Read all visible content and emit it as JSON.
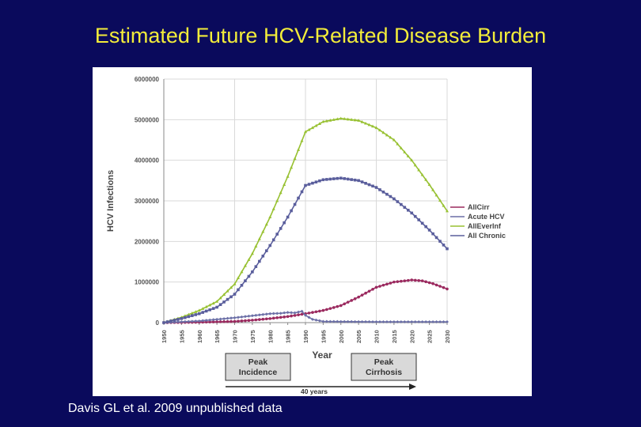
{
  "slide": {
    "title": "Estimated Future HCV-Related Disease Burden",
    "citation": "Davis GL et al. 2009 unpublished data"
  },
  "colors": {
    "background": "#0a0a5c",
    "title": "#f2ec3a",
    "AllCirr": "#9b2a5f",
    "Acute HCV": "#6b6fa6",
    "AllEverInf": "#98c132",
    "All Chronic": "#5a5e9c"
  },
  "chart_data": {
    "type": "line",
    "xlabel": "Year",
    "ylabel": "HCV Infections",
    "xlim": [
      1950,
      2030
    ],
    "ylim": [
      0,
      6000000
    ],
    "y_ticks": [
      "0",
      "1000000",
      "2000000",
      "3000000",
      "4000000",
      "5000000",
      "6000000"
    ],
    "x_ticks": [
      "1950",
      "1955",
      "1960",
      "1965",
      "1970",
      "1975",
      "1980",
      "1985",
      "1990",
      "1995",
      "2000",
      "2005",
      "2010",
      "2015",
      "2020",
      "2025",
      "2030"
    ],
    "grid": true,
    "legend_position": "right",
    "series": [
      {
        "name": "AllCirr",
        "x": [
          1950,
          1960,
          1970,
          1975,
          1980,
          1985,
          1990,
          1995,
          2000,
          2005,
          2010,
          2015,
          2020,
          2023,
          2026,
          2030
        ],
        "values": [
          0,
          10000,
          30000,
          60000,
          100000,
          150000,
          220000,
          300000,
          420000,
          630000,
          870000,
          1000000,
          1050000,
          1030000,
          960000,
          830000
        ]
      },
      {
        "name": "Acute HCV",
        "x": [
          1950,
          1960,
          1965,
          1970,
          1975,
          1980,
          1983,
          1985,
          1987,
          1989,
          1990,
          1992,
          1995,
          2000,
          2010,
          2020,
          2030
        ],
        "values": [
          0,
          40000,
          80000,
          120000,
          170000,
          220000,
          230000,
          250000,
          240000,
          280000,
          180000,
          80000,
          30000,
          25000,
          20000,
          20000,
          20000
        ]
      },
      {
        "name": "AllEverInf",
        "x": [
          1950,
          1955,
          1960,
          1965,
          1970,
          1975,
          1980,
          1985,
          1990,
          1995,
          2000,
          2005,
          2010,
          2015,
          2020,
          2025,
          2030
        ],
        "values": [
          0,
          130000,
          300000,
          520000,
          950000,
          1700000,
          2600000,
          3600000,
          4700000,
          4950000,
          5030000,
          4980000,
          4800000,
          4500000,
          4000000,
          3400000,
          2750000
        ]
      },
      {
        "name": "All Chronic",
        "x": [
          1950,
          1955,
          1960,
          1965,
          1970,
          1975,
          1980,
          1985,
          1990,
          1995,
          2000,
          2005,
          2010,
          2015,
          2020,
          2025,
          2030
        ],
        "values": [
          0,
          100000,
          220000,
          380000,
          700000,
          1250000,
          1900000,
          2600000,
          3380000,
          3520000,
          3560000,
          3500000,
          3330000,
          3050000,
          2700000,
          2280000,
          1820000
        ]
      }
    ],
    "annotations": {
      "peak_incidence": "Peak\nIncidence",
      "peak_cirrhosis": "Peak\nCirrhosis",
      "span": "40 years"
    }
  }
}
